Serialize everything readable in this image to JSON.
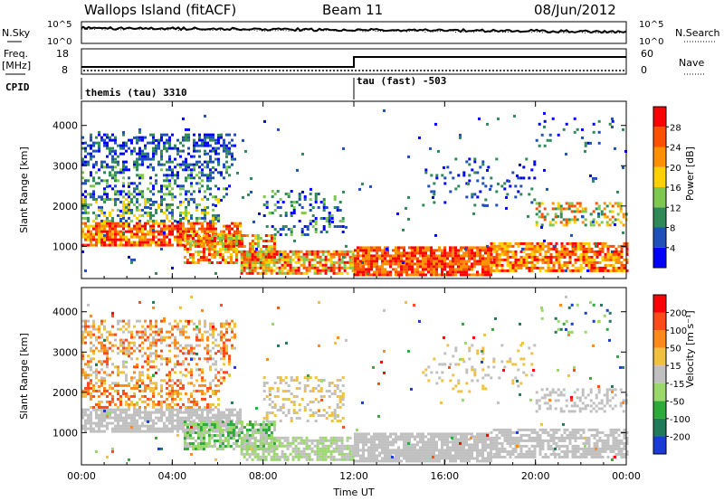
{
  "header": {
    "station": "Wallops Island (fitACF)",
    "beam": "Beam 11",
    "date": "08/Jun/2012"
  },
  "noise_panel": {
    "left_label": "N.Sky",
    "right_label": "N.Search",
    "left_ticks": [
      "10^5",
      "10^0"
    ],
    "right_ticks": [
      "10^5",
      "10^0"
    ]
  },
  "freq_panel": {
    "left_label_line1": "Freq.",
    "left_label_line2": "[MHz]",
    "right_label": "Nave",
    "left_ticks": [
      "18",
      "8"
    ],
    "right_ticks": [
      "60",
      "0"
    ],
    "cpid_label": "CPID",
    "programs": [
      {
        "name": "themis (tau) 3310",
        "start_h": 0
      },
      {
        "name": "tau (fast) -503",
        "start_h": 12
      }
    ]
  },
  "chart_data": [
    {
      "type": "heatmap",
      "title": "",
      "xlabel": "",
      "ylabel": "Slant Range [km]",
      "xlim_h": [
        0,
        24
      ],
      "ylim": [
        200,
        4600
      ],
      "x_ticks": [
        "00:00",
        "04:00",
        "08:00",
        "12:00",
        "16:00",
        "20:00",
        "00:00"
      ],
      "y_ticks": [
        1000,
        2000,
        3000,
        4000
      ],
      "colorbar": {
        "label": "Power [dB]",
        "ticks": [
          "28",
          "24",
          "20",
          "16",
          "12",
          "8",
          "4"
        ],
        "colors": [
          "#0000ff",
          "#1f4fb8",
          "#2e8b57",
          "#7ec850",
          "#ffd000",
          "#ff9000",
          "#ff5000",
          "#ff0000"
        ]
      }
    },
    {
      "type": "heatmap",
      "title": "",
      "xlabel": "Time UT",
      "ylabel": "Slant Range [km]",
      "xlim_h": [
        0,
        24
      ],
      "ylim": [
        200,
        4600
      ],
      "x_ticks": [
        "00:00",
        "04:00",
        "08:00",
        "12:00",
        "16:00",
        "20:00",
        "00:00"
      ],
      "y_ticks": [
        1000,
        2000,
        3000,
        4000
      ],
      "colorbar": {
        "label": "Velocity [m s⁻¹]",
        "ticks": [
          "200",
          "100",
          "50",
          "15",
          "-15",
          "-50",
          "-100",
          "-200"
        ],
        "colors": [
          "#1a3bd6",
          "#1f7a5a",
          "#2eaa3a",
          "#9bd86a",
          "#c0c0c0",
          "#f0c040",
          "#ff8a1a",
          "#ff4a1a",
          "#ff0000"
        ]
      }
    }
  ]
}
